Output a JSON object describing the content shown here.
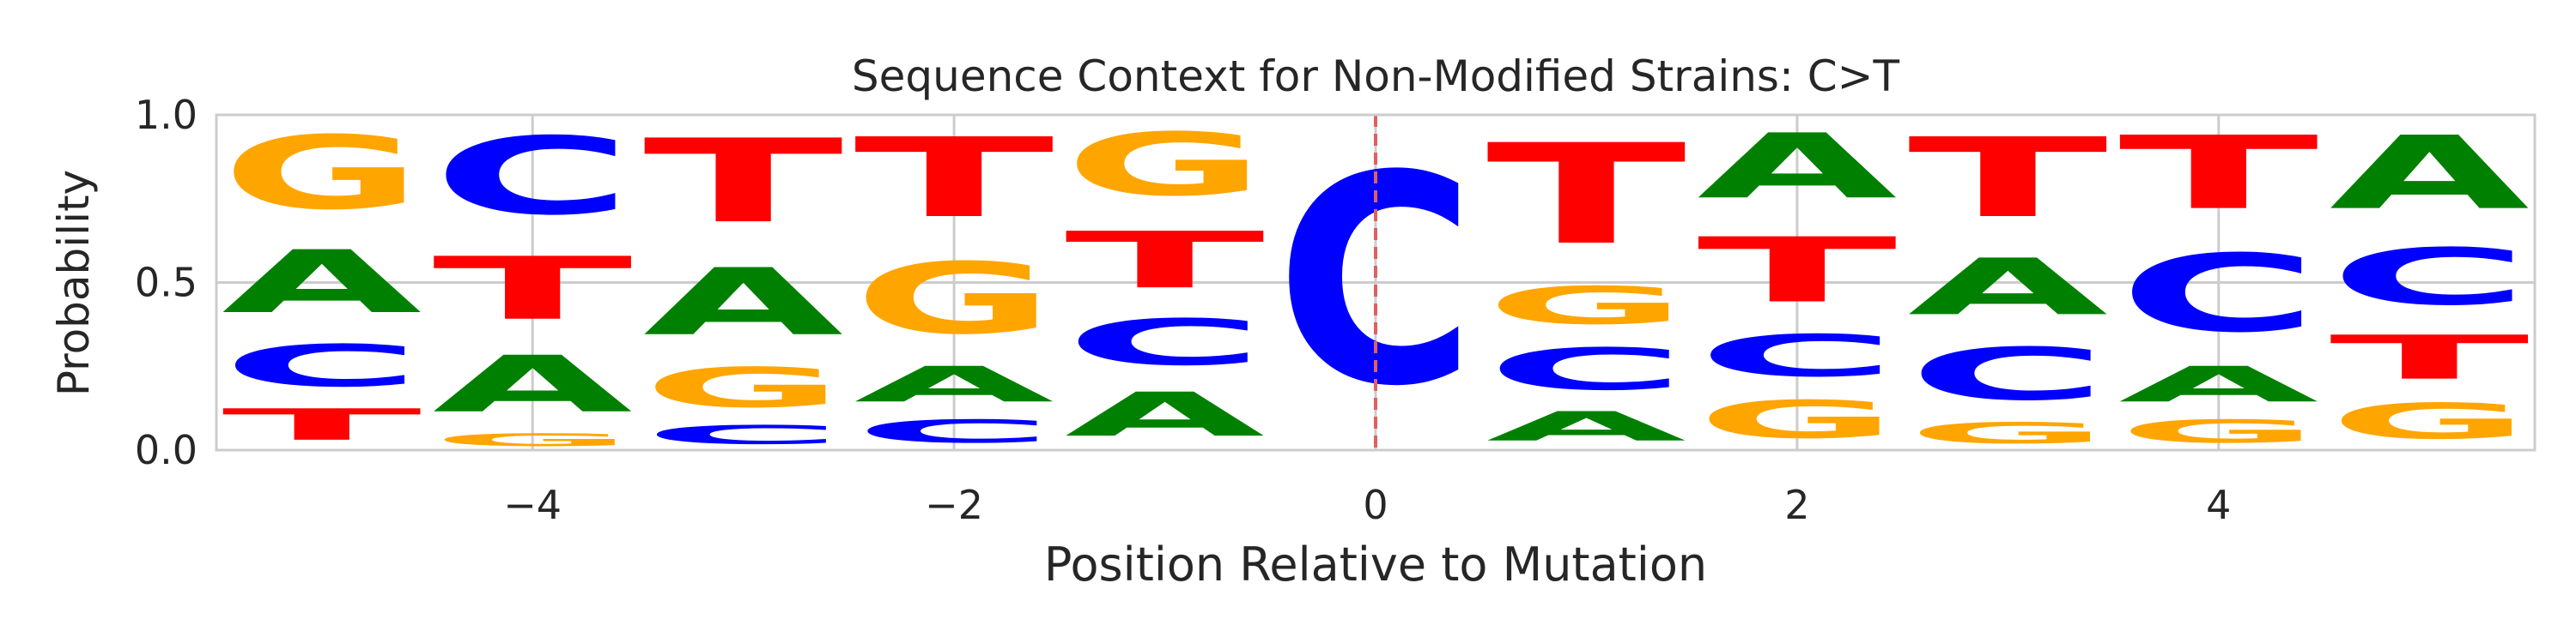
{
  "chart_data": {
    "type": "sequence-logo",
    "title": "Sequence Context for Non-Modified Strains: C>T",
    "xlabel": "Position Relative to Mutation",
    "ylabel": "Probability",
    "xlim": [
      -5.5,
      5.5
    ],
    "ylim": [
      0,
      1
    ],
    "x_ticks": [
      -4,
      -2,
      0,
      2,
      4
    ],
    "x_tick_labels": [
      "−4",
      "−2",
      "0",
      "2",
      "4"
    ],
    "y_ticks": [
      0,
      0.5,
      1
    ],
    "y_tick_labels": [
      "0.0",
      "0.5",
      "1.0"
    ],
    "grid": true,
    "mutation_marker_x": 0,
    "colors": {
      "A": "#008000",
      "C": "#0000ff",
      "G": "#ffa500",
      "T": "#ff0000",
      "marker": "#e06060",
      "grid": "#cccccc"
    },
    "positions": [
      {
        "x": -5,
        "stack": [
          {
            "base": "T",
            "p": 0.15
          },
          {
            "base": "C",
            "p": 0.2
          },
          {
            "base": "A",
            "p": 0.3
          },
          {
            "base": "G",
            "p": 0.35
          }
        ]
      },
      {
        "x": -4,
        "stack": [
          {
            "base": "G",
            "p": 0.06
          },
          {
            "base": "A",
            "p": 0.27
          },
          {
            "base": "T",
            "p": 0.3
          },
          {
            "base": "C",
            "p": 0.37
          }
        ]
      },
      {
        "x": -3,
        "stack": [
          {
            "base": "C",
            "p": 0.09
          },
          {
            "base": "G",
            "p": 0.19
          },
          {
            "base": "A",
            "p": 0.32
          },
          {
            "base": "T",
            "p": 0.4
          }
        ]
      },
      {
        "x": -2,
        "stack": [
          {
            "base": "C",
            "p": 0.11
          },
          {
            "base": "A",
            "p": 0.17
          },
          {
            "base": "G",
            "p": 0.34
          },
          {
            "base": "T",
            "p": 0.38
          }
        ]
      },
      {
        "x": -1,
        "stack": [
          {
            "base": "A",
            "p": 0.21
          },
          {
            "base": "C",
            "p": 0.22
          },
          {
            "base": "T",
            "p": 0.27
          },
          {
            "base": "G",
            "p": 0.3
          }
        ]
      },
      {
        "x": 0,
        "stack": [
          {
            "base": "C",
            "p": 1.0
          }
        ]
      },
      {
        "x": 1,
        "stack": [
          {
            "base": "A",
            "p": 0.14
          },
          {
            "base": "C",
            "p": 0.2
          },
          {
            "base": "G",
            "p": 0.18
          },
          {
            "base": "T",
            "p": 0.48
          }
        ]
      },
      {
        "x": 2,
        "stack": [
          {
            "base": "G",
            "p": 0.18
          },
          {
            "base": "C",
            "p": 0.2
          },
          {
            "base": "T",
            "p": 0.31
          },
          {
            "base": "A",
            "p": 0.31
          }
        ]
      },
      {
        "x": 3,
        "stack": [
          {
            "base": "G",
            "p": 0.1
          },
          {
            "base": "C",
            "p": 0.25
          },
          {
            "base": "A",
            "p": 0.27
          },
          {
            "base": "T",
            "p": 0.38
          }
        ]
      },
      {
        "x": 4,
        "stack": [
          {
            "base": "G",
            "p": 0.11
          },
          {
            "base": "A",
            "p": 0.17
          },
          {
            "base": "C",
            "p": 0.37
          },
          {
            "base": "T",
            "p": 0.35
          }
        ]
      },
      {
        "x": 5,
        "stack": [
          {
            "base": "G",
            "p": 0.17
          },
          {
            "base": "T",
            "p": 0.21
          },
          {
            "base": "C",
            "p": 0.27
          },
          {
            "base": "A",
            "p": 0.35
          }
        ]
      }
    ]
  }
}
